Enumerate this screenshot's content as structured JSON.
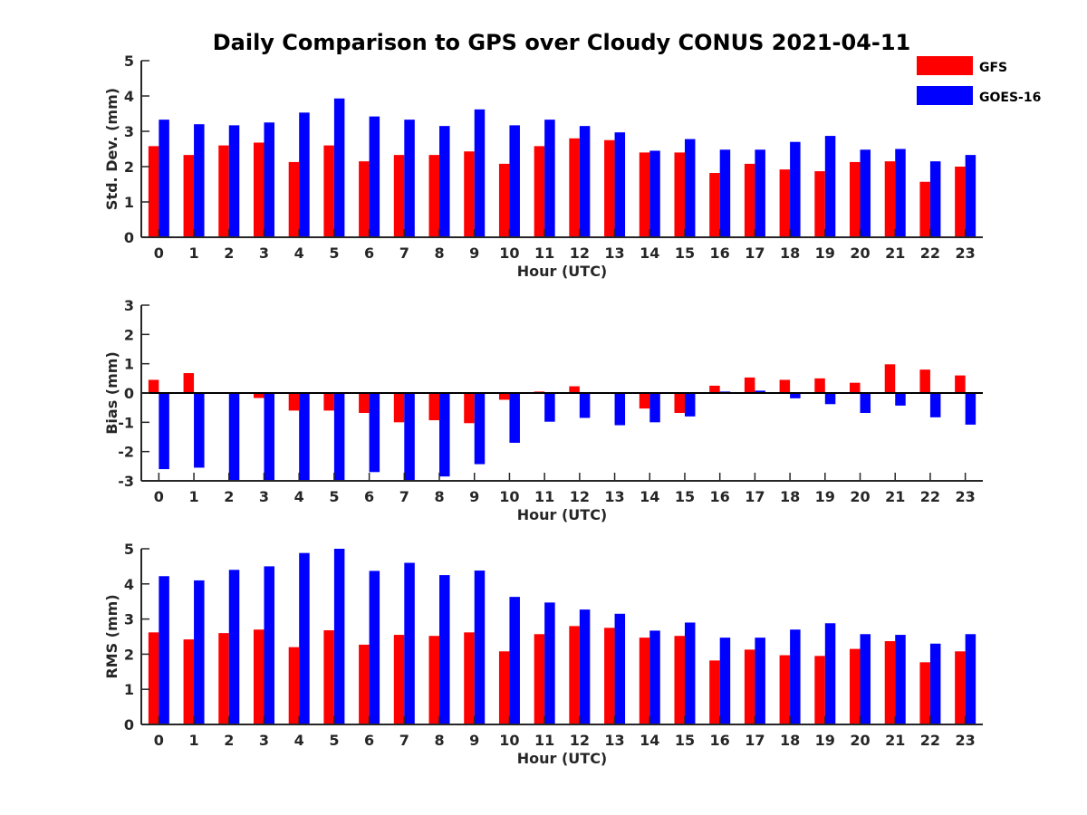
{
  "title": "Daily Comparison to GPS over Cloudy CONUS 2021-04-11",
  "colors": {
    "GFS": "#ff0000",
    "GOES-16": "#0000ff",
    "axis": "#262626"
  },
  "legend": {
    "placement": "top-right",
    "entries": [
      "GFS",
      "GOES-16"
    ]
  },
  "chart_data": [
    {
      "type": "bar",
      "ylabel": "Std. Dev. (mm)",
      "xlabel": "Hour (UTC)",
      "ylim": [
        0,
        5
      ],
      "yticks": [
        0,
        1,
        2,
        3,
        4,
        5
      ],
      "zero_line": false,
      "categories": [
        "0",
        "1",
        "2",
        "3",
        "4",
        "5",
        "6",
        "7",
        "8",
        "9",
        "10",
        "11",
        "12",
        "13",
        "14",
        "15",
        "16",
        "17",
        "18",
        "19",
        "20",
        "21",
        "22",
        "23"
      ],
      "series": [
        {
          "name": "GFS",
          "values": [
            2.58,
            2.33,
            2.6,
            2.68,
            2.13,
            2.6,
            2.15,
            2.33,
            2.33,
            2.43,
            2.08,
            2.58,
            2.8,
            2.75,
            2.4,
            2.4,
            1.82,
            2.08,
            1.92,
            1.87,
            2.13,
            2.15,
            1.57,
            2.0
          ]
        },
        {
          "name": "GOES-16",
          "values": [
            3.33,
            3.2,
            3.17,
            3.25,
            3.53,
            3.93,
            3.42,
            3.33,
            3.15,
            3.62,
            3.17,
            3.33,
            3.15,
            2.97,
            2.45,
            2.78,
            2.48,
            2.48,
            2.7,
            2.87,
            2.48,
            2.5,
            2.15,
            2.33
          ]
        }
      ]
    },
    {
      "type": "bar",
      "ylabel": "Bias (mm)",
      "xlabel": "Hour (UTC)",
      "ylim": [
        -3,
        3
      ],
      "yticks": [
        -3,
        -2,
        -1,
        0,
        1,
        2,
        3
      ],
      "zero_line": true,
      "categories": [
        "0",
        "1",
        "2",
        "3",
        "4",
        "5",
        "6",
        "7",
        "8",
        "9",
        "10",
        "11",
        "12",
        "13",
        "14",
        "15",
        "16",
        "17",
        "18",
        "19",
        "20",
        "21",
        "22",
        "23"
      ],
      "series": [
        {
          "name": "GFS",
          "values": [
            0.45,
            0.68,
            0.0,
            -0.17,
            -0.6,
            -0.6,
            -0.68,
            -1.0,
            -0.93,
            -1.03,
            -0.23,
            0.05,
            0.23,
            0.0,
            -0.53,
            -0.68,
            0.25,
            0.53,
            0.45,
            0.5,
            0.35,
            0.98,
            0.8,
            0.6
          ]
        },
        {
          "name": "GOES-16",
          "values": [
            -2.6,
            -2.55,
            -3.0,
            -3.0,
            -3.0,
            -3.0,
            -2.7,
            -3.0,
            -2.85,
            -2.43,
            -1.7,
            -0.98,
            -0.85,
            -1.1,
            -1.0,
            -0.8,
            0.05,
            0.08,
            -0.18,
            -0.38,
            -0.68,
            -0.43,
            -0.83,
            -1.08
          ]
        }
      ]
    },
    {
      "type": "bar",
      "ylabel": "RMS (mm)",
      "xlabel": "Hour (UTC)",
      "ylim": [
        0,
        5
      ],
      "yticks": [
        0,
        1,
        2,
        3,
        4,
        5
      ],
      "zero_line": false,
      "categories": [
        "0",
        "1",
        "2",
        "3",
        "4",
        "5",
        "6",
        "7",
        "8",
        "9",
        "10",
        "11",
        "12",
        "13",
        "14",
        "15",
        "16",
        "17",
        "18",
        "19",
        "20",
        "21",
        "22",
        "23"
      ],
      "series": [
        {
          "name": "GFS",
          "values": [
            2.62,
            2.42,
            2.6,
            2.7,
            2.2,
            2.68,
            2.27,
            2.55,
            2.52,
            2.62,
            2.08,
            2.57,
            2.8,
            2.75,
            2.47,
            2.52,
            1.82,
            2.13,
            1.97,
            1.95,
            2.15,
            2.37,
            1.77,
            2.08
          ]
        },
        {
          "name": "GOES-16",
          "values": [
            4.22,
            4.1,
            4.4,
            4.5,
            4.88,
            5.0,
            4.37,
            4.6,
            4.25,
            4.38,
            3.63,
            3.47,
            3.27,
            3.15,
            2.67,
            2.9,
            2.47,
            2.47,
            2.7,
            2.88,
            2.57,
            2.55,
            2.3,
            2.57
          ]
        }
      ]
    }
  ]
}
